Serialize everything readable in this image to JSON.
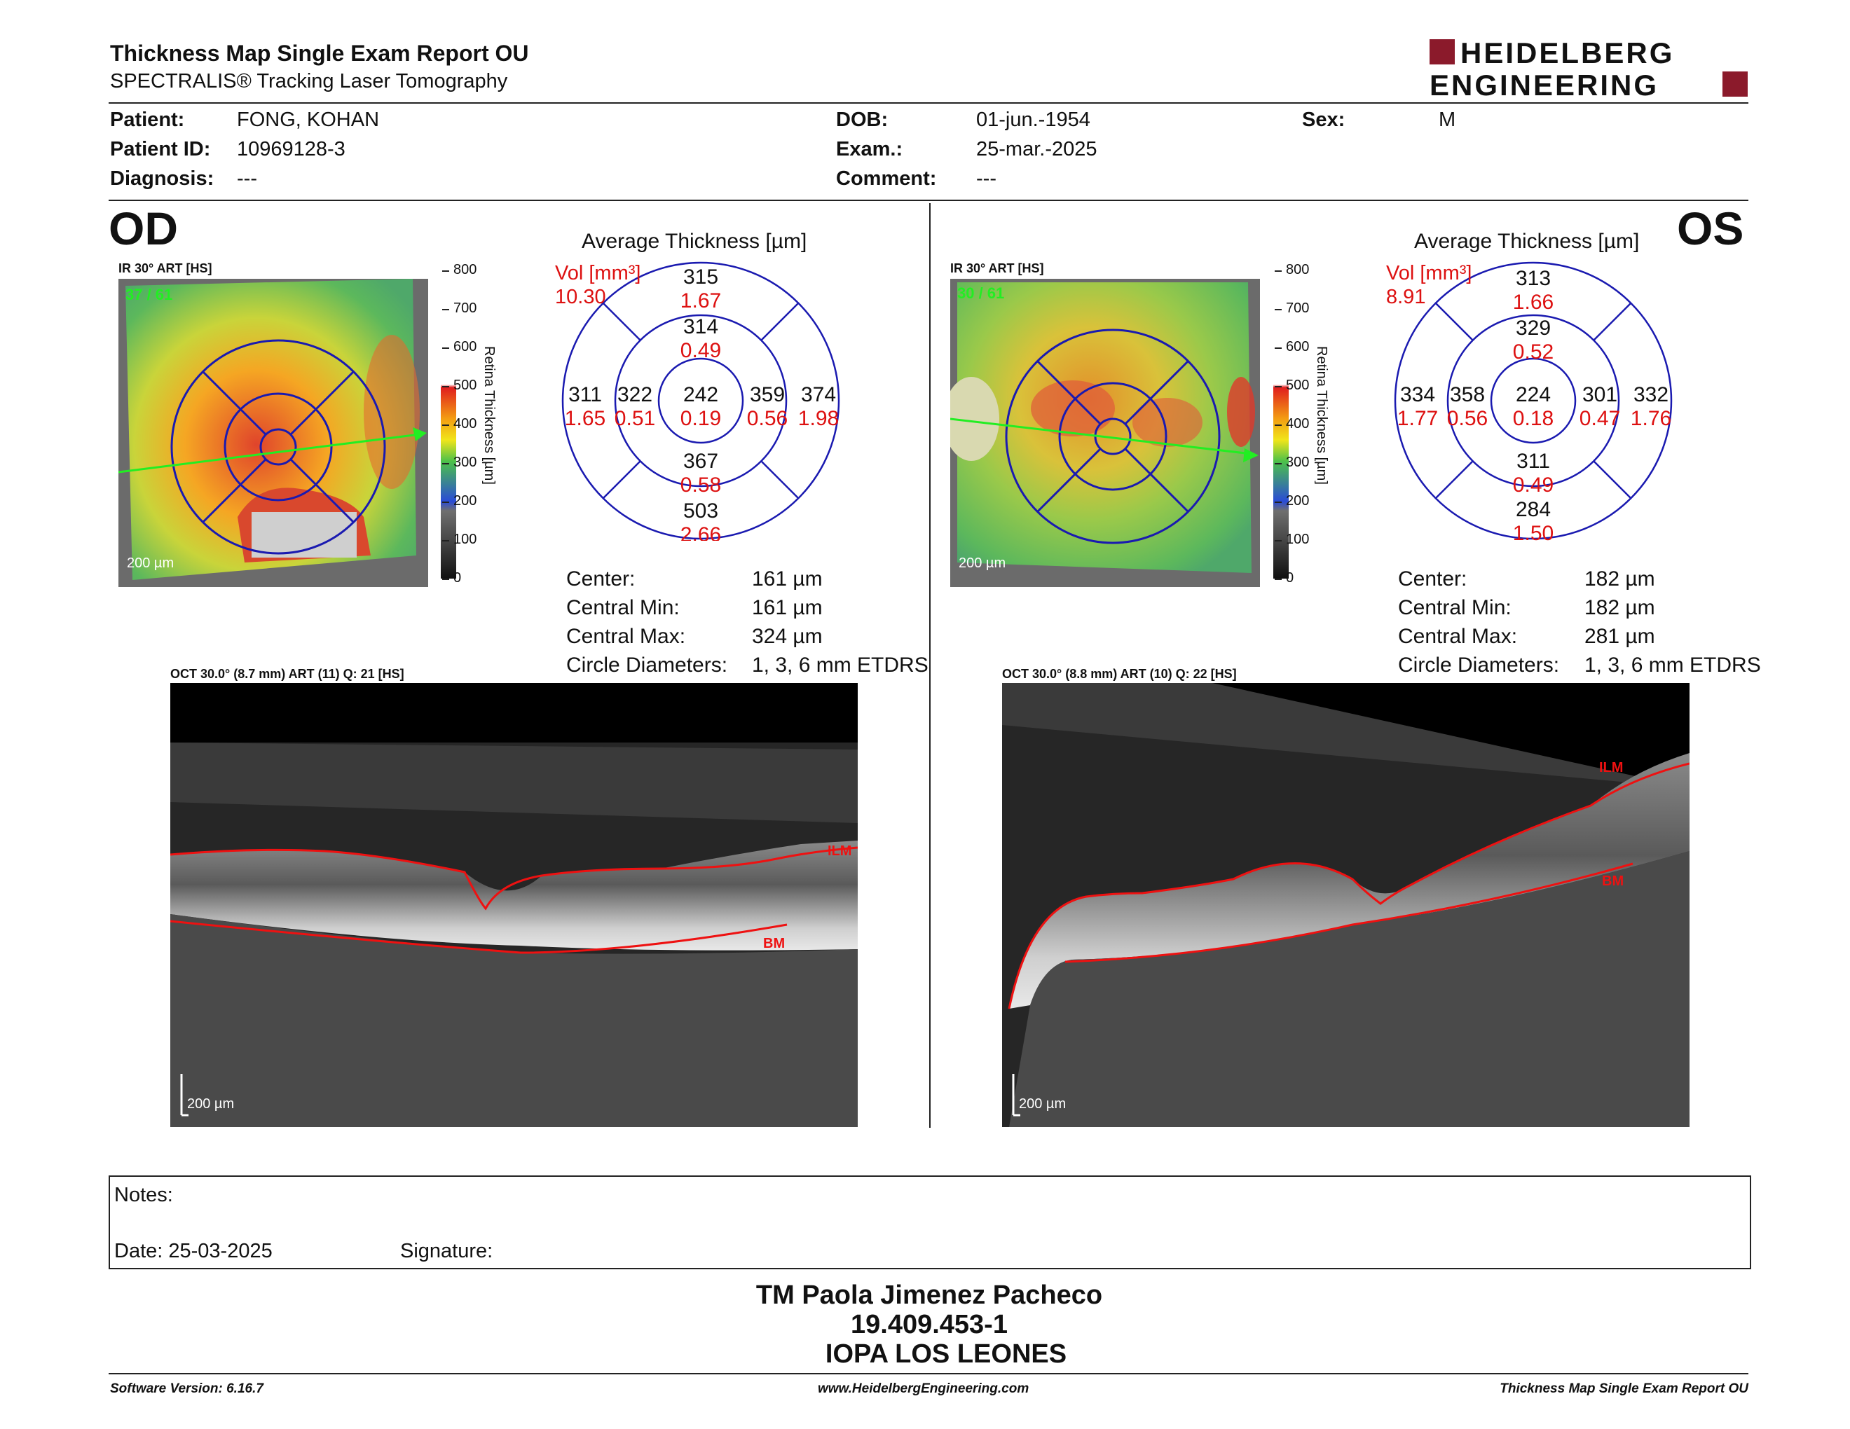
{
  "header": {
    "title": "Thickness Map Single Exam Report OU",
    "subtitle": "SPECTRALIS® Tracking Laser Tomography",
    "logo_line1": "HEIDELBERG",
    "logo_line2": "ENGINEERING",
    "logo_color": "#8b1a2b"
  },
  "patient": {
    "patient_label": "Patient:",
    "patient_value": "FONG, KOHAN",
    "id_label": "Patient ID:",
    "id_value": "10969128-3",
    "diagnosis_label": "Diagnosis:",
    "diagnosis_value": "---",
    "dob_label": "DOB:",
    "dob_value": "01-jun.-1954",
    "exam_label": "Exam.:",
    "exam_value": "25-mar.-2025",
    "comment_label": "Comment:",
    "comment_value": "---",
    "sex_label": "Sex:",
    "sex_value": "M"
  },
  "od": {
    "eye": "OD",
    "ir_title": "IR 30° ART [HS]",
    "ir_frames": "37 / 61",
    "scale": "200 µm",
    "avg_title": "Average Thickness [µm]",
    "vol_label": "Vol [mm³]",
    "vol_total": "10.30",
    "sectors": {
      "outer_sup": [
        "315",
        "1.67"
      ],
      "inner_sup": [
        "314",
        "0.49"
      ],
      "outer_temp": [
        "311",
        "1.65"
      ],
      "inner_temp": [
        "322",
        "0.51"
      ],
      "center": [
        "242",
        "0.19"
      ],
      "inner_nas": [
        "359",
        "0.56"
      ],
      "outer_nas": [
        "374",
        "1.98"
      ],
      "inner_inf": [
        "367",
        "0.58"
      ],
      "outer_inf": [
        "503",
        "2.66"
      ]
    },
    "stats": [
      {
        "label": "Center:",
        "value": "161 µm"
      },
      {
        "label": "Central Min:",
        "value": "161 µm"
      },
      {
        "label": "Central Max:",
        "value": "324 µm"
      },
      {
        "label": "Circle Diameters:",
        "value": "1, 3, 6 mm ETDRS"
      }
    ],
    "oct_title": "OCT 30.0° (8.7 mm) ART (11) Q: 21 [HS]",
    "ilm": "ILM",
    "bm": "BM"
  },
  "os": {
    "eye": "OS",
    "ir_title": "IR 30° ART [HS]",
    "ir_frames": "30 / 61",
    "scale": "200 µm",
    "avg_title": "Average Thickness [µm]",
    "vol_label": "Vol [mm³]",
    "vol_total": "8.91",
    "sectors": {
      "outer_sup": [
        "313",
        "1.66"
      ],
      "inner_sup": [
        "329",
        "0.52"
      ],
      "outer_temp": [
        "334",
        "1.77"
      ],
      "inner_temp": [
        "358",
        "0.56"
      ],
      "center": [
        "224",
        "0.18"
      ],
      "inner_nas": [
        "301",
        "0.47"
      ],
      "outer_nas": [
        "332",
        "1.76"
      ],
      "inner_inf": [
        "311",
        "0.49"
      ],
      "outer_inf": [
        "284",
        "1.50"
      ]
    },
    "stats": [
      {
        "label": "Center:",
        "value": "182 µm"
      },
      {
        "label": "Central Min:",
        "value": "182 µm"
      },
      {
        "label": "Central Max:",
        "value": "281 µm"
      },
      {
        "label": "Circle Diameters:",
        "value": "1, 3, 6 mm ETDRS"
      }
    ],
    "oct_title": "OCT 30.0° (8.8 mm) ART (10) Q: 22 [HS]",
    "ilm": "ILM",
    "bm": "BM"
  },
  "colorbar": {
    "ticks": [
      "800",
      "700",
      "600",
      "500",
      "400",
      "300",
      "200",
      "100",
      "0"
    ],
    "label": "Retina Thickness [µm]"
  },
  "notes": {
    "notes_label": "Notes:",
    "date_label": "Date: 25-03-2025",
    "signature_label": "Signature:"
  },
  "signature": {
    "line1": "TM Paola Jimenez Pacheco",
    "line2": "19.409.453-1",
    "line3": "IOPA LOS LEONES"
  },
  "footer": {
    "left": "Software Version: 6.16.7",
    "center": "www.HeidelbergEngineering.com",
    "right": "Thickness Map Single Exam Report OU"
  }
}
